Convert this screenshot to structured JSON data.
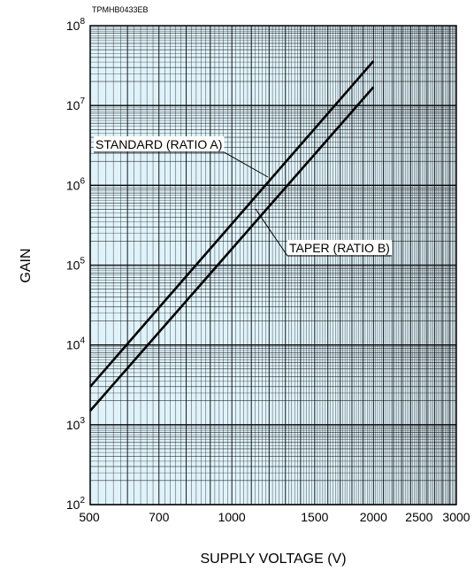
{
  "figure_code": "TPMHB0433EB",
  "chart_data": {
    "type": "line",
    "xlabel": "SUPPLY VOLTAGE (V)",
    "ylabel": "GAIN",
    "x_scale": "log",
    "y_scale": "log",
    "xlim": [
      500,
      3000
    ],
    "ylim": [
      100,
      100000000
    ],
    "grid": true,
    "x_ticks": [
      {
        "value": 500,
        "label": "500"
      },
      {
        "value": 700,
        "label": "700"
      },
      {
        "value": 1000,
        "label": "1000"
      },
      {
        "value": 1500,
        "label": "1500"
      },
      {
        "value": 2000,
        "label": "2000"
      },
      {
        "value": 2500,
        "label": "2500"
      },
      {
        "value": 3000,
        "label": "3000"
      }
    ],
    "y_ticks": [
      {
        "value": 100,
        "base": "10",
        "exp": "2"
      },
      {
        "value": 1000,
        "base": "10",
        "exp": "3"
      },
      {
        "value": 10000,
        "base": "10",
        "exp": "4"
      },
      {
        "value": 100000,
        "base": "10",
        "exp": "5"
      },
      {
        "value": 1000000,
        "base": "10",
        "exp": "6"
      },
      {
        "value": 10000000,
        "base": "10",
        "exp": "7"
      },
      {
        "value": 100000000,
        "base": "10",
        "exp": "8"
      }
    ],
    "series": [
      {
        "name": "STANDARD (RATIO A)",
        "x": [
          500,
          2000
        ],
        "y": [
          3000,
          36000000
        ]
      },
      {
        "name": "TAPER (RATIO B)",
        "x": [
          500,
          2000
        ],
        "y": [
          1500,
          17000000
        ]
      }
    ],
    "annotations": [
      {
        "text": "STANDARD (RATIO A)",
        "series": 0
      },
      {
        "text": "TAPER (RATIO B)",
        "series": 1
      }
    ]
  }
}
